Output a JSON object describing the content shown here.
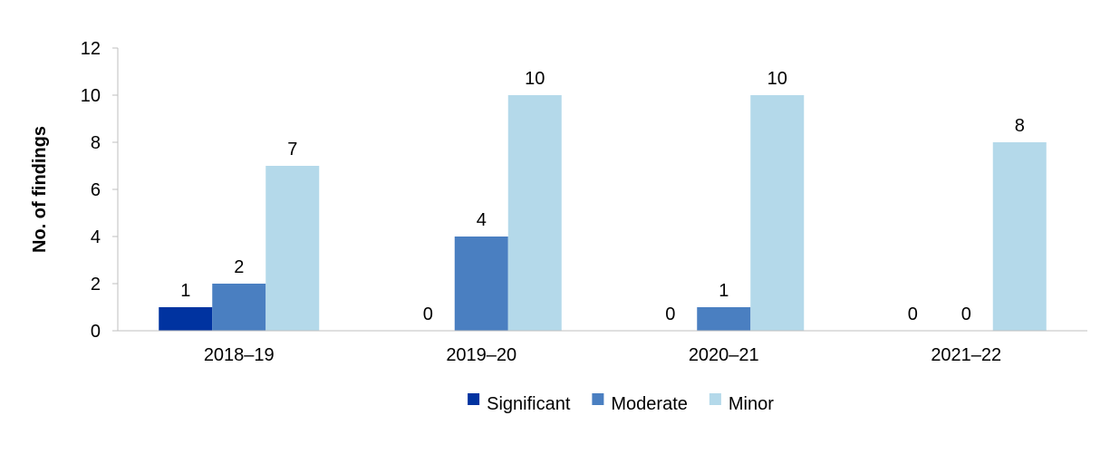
{
  "chart_data": {
    "type": "bar",
    "title": "",
    "xlabel": "",
    "ylabel": "No. of findings",
    "ylim": [
      0,
      12
    ],
    "yticks": [
      0,
      2,
      4,
      6,
      8,
      10,
      12
    ],
    "grid": false,
    "legend_position": "bottom-center",
    "categories": [
      "2018–19",
      "2019–20",
      "2020–21",
      "2021–22"
    ],
    "series": [
      {
        "name": "Significant",
        "color": "#0033A0",
        "values": [
          1,
          0,
          0,
          0
        ]
      },
      {
        "name": "Moderate",
        "color": "#4A7FC1",
        "values": [
          2,
          4,
          1,
          0
        ]
      },
      {
        "name": "Minor",
        "color": "#B4D9EA",
        "values": [
          7,
          10,
          10,
          8
        ]
      }
    ]
  }
}
